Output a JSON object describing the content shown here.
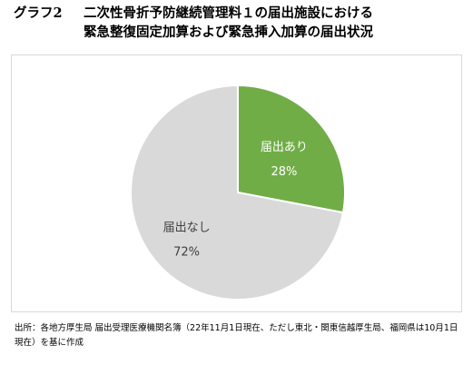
{
  "title": {
    "label": "グラフ2",
    "line1": "二次性骨折予防継続管理料１の届出施設における",
    "line2": "緊急整復固定加算および緊急挿入加算の届出状況"
  },
  "chart_data": {
    "type": "pie",
    "slices": [
      {
        "label": "届出あり",
        "value": 28,
        "display": "28%",
        "color": "#70ad47",
        "text_color": "#ffffff"
      },
      {
        "label": "届出なし",
        "value": 72,
        "display": "72%",
        "color": "#d9d9d9",
        "text_color": "#404040"
      }
    ],
    "start_angle_deg": 0,
    "direction": "clockwise",
    "legend": "none",
    "data_labels": "inside"
  },
  "source": {
    "text": "出所：各地方厚生局 届出受理医療機関名簿（22年11月1日現在、ただし東北・関東信越厚生局、福岡県は10月1日現在）を基に作成"
  }
}
